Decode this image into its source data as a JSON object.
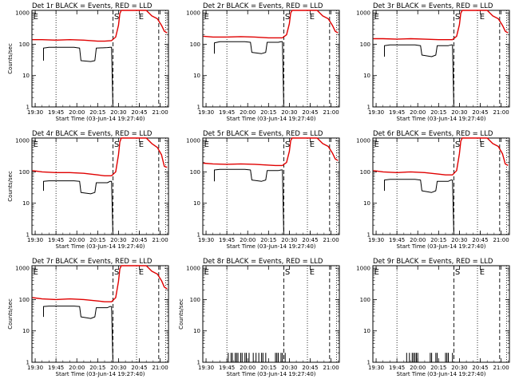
{
  "figure": {
    "xlabel": "Start Time (03-Jun-14 19:27:40)",
    "ylabel": "Counts/sec",
    "x_tick_labels": [
      "19:30",
      "19:45",
      "20:00",
      "20:15",
      "20:30",
      "20:45",
      "21:00"
    ],
    "y_tick_labels": [
      "1",
      "10",
      "100",
      "1000"
    ],
    "colors": {
      "events": "#000000",
      "lld": "#e00000"
    }
  },
  "chart_data": [
    {
      "type": "line",
      "title": "Det 1r BLACK = Events, RED = LLD",
      "xlim": [
        "19:27:40",
        "21:06:00"
      ],
      "ylim": [
        1,
        1200
      ],
      "yscale": "log",
      "flags": [
        "E",
        "S",
        "E"
      ],
      "series": [
        {
          "name": "Events",
          "x": [
            "19:36",
            "19:36",
            "19:40",
            "19:50",
            "19:58",
            "20:02",
            "20:03",
            "20:10",
            "20:13",
            "20:14",
            "20:22",
            "20:24",
            "20:25",
            "20:26",
            "20:27"
          ],
          "values": [
            30,
            75,
            80,
            80,
            80,
            75,
            30,
            28,
            30,
            75,
            78,
            80,
            80,
            1,
            1
          ]
        },
        {
          "name": "LLD",
          "x": [
            "19:28",
            "19:35",
            "19:45",
            "19:55",
            "20:05",
            "20:15",
            "20:20",
            "20:25",
            "20:28",
            "20:30",
            "20:31",
            "20:32",
            "20:33",
            "20:40",
            "20:46",
            "20:50",
            "20:54",
            "20:58",
            "21:01",
            "21:03",
            "21:05"
          ],
          "values": [
            140,
            140,
            135,
            140,
            135,
            125,
            125,
            130,
            170,
            400,
            950,
            1300,
            1300,
            1300,
            1300,
            1250,
            800,
            650,
            400,
            260,
            230
          ]
        }
      ]
    },
    {
      "type": "line",
      "title": "Det 2r BLACK = Events, RED = LLD",
      "xlim": [
        "19:27:40",
        "21:06:00"
      ],
      "ylim": [
        1,
        1200
      ],
      "yscale": "log",
      "flags": [
        "E",
        "S",
        "E"
      ],
      "series": [
        {
          "name": "Events",
          "x": [
            "19:36",
            "19:36",
            "19:40",
            "19:50",
            "19:58",
            "20:02",
            "20:03",
            "20:10",
            "20:13",
            "20:14",
            "20:22",
            "20:24",
            "20:25",
            "20:26",
            "20:27"
          ],
          "values": [
            50,
            110,
            120,
            120,
            120,
            115,
            55,
            50,
            55,
            115,
            115,
            120,
            120,
            1,
            1
          ]
        },
        {
          "name": "LLD",
          "x": [
            "19:28",
            "19:35",
            "19:45",
            "19:55",
            "20:05",
            "20:15",
            "20:20",
            "20:25",
            "20:28",
            "20:30",
            "20:31",
            "20:32",
            "20:33",
            "20:40",
            "20:46",
            "20:50",
            "20:54",
            "20:58",
            "21:01",
            "21:03",
            "21:05"
          ],
          "values": [
            180,
            170,
            170,
            175,
            170,
            160,
            160,
            160,
            200,
            450,
            1000,
            1300,
            1300,
            1300,
            1300,
            1250,
            800,
            650,
            400,
            260,
            230
          ]
        }
      ]
    },
    {
      "type": "line",
      "title": "Det 3r BLACK = Events, RED = LLD",
      "xlim": [
        "19:27:40",
        "21:06:00"
      ],
      "ylim": [
        1,
        1200
      ],
      "yscale": "log",
      "flags": [
        "E",
        "S",
        "E"
      ],
      "series": [
        {
          "name": "Events",
          "x": [
            "19:36",
            "19:36",
            "19:40",
            "19:50",
            "19:58",
            "20:02",
            "20:03",
            "20:10",
            "20:13",
            "20:14",
            "20:22",
            "20:24",
            "20:25",
            "20:26",
            "20:27"
          ],
          "values": [
            40,
            90,
            95,
            95,
            95,
            90,
            45,
            40,
            45,
            90,
            90,
            95,
            95,
            1,
            1
          ]
        },
        {
          "name": "LLD",
          "x": [
            "19:28",
            "19:35",
            "19:45",
            "19:55",
            "20:05",
            "20:15",
            "20:20",
            "20:25",
            "20:28",
            "20:30",
            "20:31",
            "20:32",
            "20:33",
            "20:40",
            "20:46",
            "20:50",
            "20:54",
            "20:58",
            "21:01",
            "21:03",
            "21:05"
          ],
          "values": [
            150,
            150,
            145,
            150,
            145,
            140,
            140,
            140,
            180,
            420,
            980,
            1300,
            1300,
            1300,
            1300,
            1250,
            800,
            650,
            400,
            260,
            230
          ]
        }
      ]
    },
    {
      "type": "line",
      "title": "Det 4r BLACK = Events, RED = LLD",
      "xlim": [
        "19:27:40",
        "21:06:00"
      ],
      "ylim": [
        1,
        1200
      ],
      "yscale": "log",
      "flags": [
        "E",
        "S",
        "E"
      ],
      "series": [
        {
          "name": "Events",
          "x": [
            "19:36",
            "19:36",
            "19:40",
            "19:50",
            "19:58",
            "20:02",
            "20:03",
            "20:10",
            "20:13",
            "20:14",
            "20:22",
            "20:24",
            "20:25",
            "20:26",
            "20:27"
          ],
          "values": [
            25,
            50,
            52,
            52,
            52,
            50,
            22,
            20,
            22,
            45,
            45,
            50,
            50,
            1,
            1
          ]
        },
        {
          "name": "LLD",
          "x": [
            "19:28",
            "19:35",
            "19:45",
            "19:55",
            "20:05",
            "20:15",
            "20:20",
            "20:25",
            "20:28",
            "20:30",
            "20:31",
            "20:32",
            "20:33",
            "20:40",
            "20:46",
            "20:50",
            "20:54",
            "20:58",
            "21:01",
            "21:03",
            "21:05"
          ],
          "values": [
            110,
            100,
            95,
            95,
            90,
            80,
            75,
            75,
            100,
            350,
            900,
            1300,
            1300,
            1300,
            1300,
            1250,
            800,
            600,
            350,
            150,
            140
          ]
        }
      ]
    },
    {
      "type": "line",
      "title": "Det 5r BLACK = Events, RED = LLD",
      "xlim": [
        "19:27:40",
        "21:06:00"
      ],
      "ylim": [
        1,
        1200
      ],
      "yscale": "log",
      "flags": [
        "E",
        "S",
        "E"
      ],
      "series": [
        {
          "name": "Events",
          "x": [
            "19:36",
            "19:36",
            "19:40",
            "19:50",
            "19:58",
            "20:02",
            "20:03",
            "20:10",
            "20:13",
            "20:14",
            "20:22",
            "20:24",
            "20:25",
            "20:26",
            "20:27"
          ],
          "values": [
            50,
            115,
            120,
            120,
            120,
            115,
            55,
            50,
            55,
            110,
            110,
            115,
            115,
            1,
            1
          ]
        },
        {
          "name": "LLD",
          "x": [
            "19:28",
            "19:35",
            "19:45",
            "19:55",
            "20:05",
            "20:15",
            "20:20",
            "20:25",
            "20:28",
            "20:30",
            "20:31",
            "20:32",
            "20:33",
            "20:40",
            "20:46",
            "20:50",
            "20:54",
            "20:58",
            "21:01",
            "21:03",
            "21:05"
          ],
          "values": [
            190,
            180,
            175,
            180,
            175,
            165,
            160,
            160,
            200,
            450,
            1000,
            1300,
            1300,
            1300,
            1300,
            1250,
            800,
            650,
            400,
            260,
            230
          ]
        }
      ]
    },
    {
      "type": "line",
      "title": "Det 6r BLACK = Events, RED = LLD",
      "xlim": [
        "19:27:40",
        "21:06:00"
      ],
      "ylim": [
        1,
        1200
      ],
      "yscale": "log",
      "flags": [
        "E",
        "S",
        "E"
      ],
      "series": [
        {
          "name": "Events",
          "x": [
            "19:36",
            "19:36",
            "19:40",
            "19:50",
            "19:58",
            "20:02",
            "20:03",
            "20:10",
            "20:13",
            "20:14",
            "20:22",
            "20:24",
            "20:25",
            "20:26",
            "20:27"
          ],
          "values": [
            25,
            55,
            58,
            58,
            58,
            55,
            25,
            22,
            25,
            50,
            50,
            55,
            55,
            1,
            1
          ]
        },
        {
          "name": "LLD",
          "x": [
            "19:28",
            "19:35",
            "19:45",
            "19:55",
            "20:05",
            "20:15",
            "20:20",
            "20:25",
            "20:28",
            "20:30",
            "20:31",
            "20:32",
            "20:33",
            "20:40",
            "20:46",
            "20:50",
            "20:54",
            "20:58",
            "21:01",
            "21:03",
            "21:05"
          ],
          "values": [
            110,
            100,
            95,
            100,
            95,
            85,
            80,
            80,
            110,
            380,
            950,
            1300,
            1300,
            1300,
            1300,
            1250,
            800,
            650,
            380,
            180,
            160
          ]
        }
      ]
    },
    {
      "type": "line",
      "title": "Det 7r BLACK = Events, RED = LLD",
      "xlim": [
        "19:27:40",
        "21:06:00"
      ],
      "ylim": [
        1,
        1200
      ],
      "yscale": "log",
      "flags": [
        "E",
        "S",
        "E"
      ],
      "series": [
        {
          "name": "Events",
          "x": [
            "19:36",
            "19:36",
            "19:40",
            "19:50",
            "19:58",
            "20:02",
            "20:03",
            "20:10",
            "20:13",
            "20:14",
            "20:22",
            "20:24",
            "20:25",
            "20:26",
            "20:27"
          ],
          "values": [
            28,
            60,
            62,
            62,
            62,
            60,
            28,
            25,
            28,
            55,
            55,
            60,
            60,
            1,
            1
          ]
        },
        {
          "name": "LLD",
          "x": [
            "19:28",
            "19:35",
            "19:45",
            "19:55",
            "20:05",
            "20:15",
            "20:20",
            "20:25",
            "20:28",
            "20:30",
            "20:31",
            "20:32",
            "20:33",
            "20:40",
            "20:46",
            "20:50",
            "20:54",
            "20:58",
            "21:01",
            "21:03",
            "21:05"
          ],
          "values": [
            115,
            105,
            100,
            105,
            100,
            90,
            85,
            85,
            115,
            380,
            950,
            1300,
            1300,
            1300,
            1300,
            1250,
            800,
            650,
            400,
            250,
            220
          ]
        }
      ]
    },
    {
      "type": "line",
      "title": "Det 8r BLACK = Events, RED = LLD",
      "xlim": [
        "19:27:40",
        "21:06:00"
      ],
      "ylim": [
        1,
        1200
      ],
      "yscale": "log",
      "flags": [
        "E",
        "S",
        "E"
      ],
      "series": [
        {
          "name": "Events",
          "spikes": [
            "19:46",
            "19:48",
            "19:49",
            "19:51",
            "19:52",
            "19:53",
            "19:55",
            "19:56",
            "19:58",
            "19:59",
            "20:01",
            "20:04",
            "20:06",
            "20:08",
            "20:10",
            "20:11",
            "20:13",
            "20:20",
            "20:21",
            "20:22",
            "20:24",
            "20:25",
            "20:27"
          ],
          "spike_value": 2
        }
      ]
    },
    {
      "type": "line",
      "title": "Det 9r BLACK = Events, RED = LLD",
      "xlim": [
        "19:27:40",
        "21:06:00"
      ],
      "ylim": [
        1,
        1200
      ],
      "yscale": "log",
      "flags": [
        "E",
        "S",
        "E"
      ],
      "series": [
        {
          "name": "Events",
          "spikes": [
            "19:52",
            "19:54",
            "19:56",
            "19:57",
            "19:58",
            "19:59",
            "20:00",
            "20:09",
            "20:10",
            "20:13",
            "20:14",
            "20:20",
            "20:21",
            "20:22",
            "20:25"
          ],
          "spike_value": 2
        }
      ]
    }
  ]
}
